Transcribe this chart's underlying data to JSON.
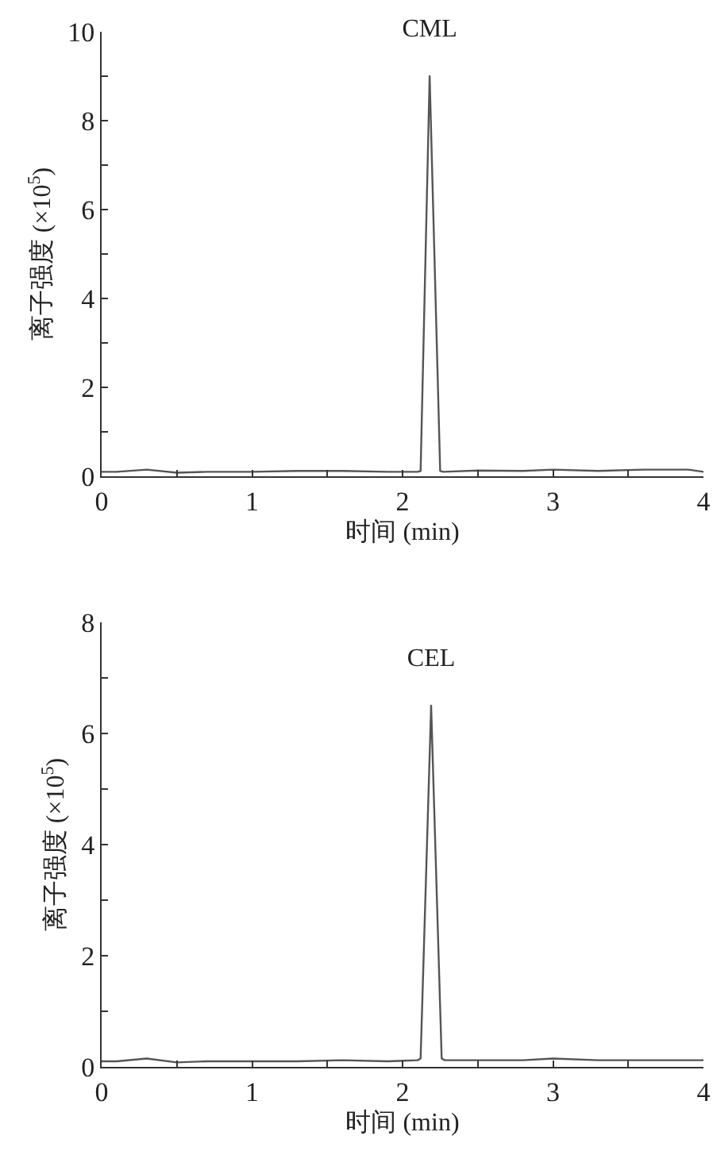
{
  "chart_data": [
    {
      "type": "line",
      "xlabel": "时间 (min)",
      "ylabel": "离子强度 (×10$^{5}$)",
      "xlim": [
        0,
        4
      ],
      "ylim": [
        0,
        10
      ],
      "xticks": [
        0,
        {
          "value": 0.5,
          "label": null
        },
        1,
        {
          "value": 1.5,
          "label": null
        },
        2,
        {
          "value": 2.5,
          "label": null
        },
        3,
        {
          "value": 3.5,
          "label": null
        },
        4
      ],
      "yticks": [
        0,
        {
          "value": 1,
          "label": null
        },
        2,
        {
          "value": 3,
          "label": null
        },
        4,
        {
          "value": 5,
          "label": null
        },
        6,
        {
          "value": 7,
          "label": null
        },
        8,
        {
          "value": 9,
          "label": null
        },
        10
      ],
      "marker": "none",
      "line_style": "solid",
      "annotations": [
        {
          "text": "CML",
          "x": 2.18,
          "y": 9
        }
      ],
      "series": [
        {
          "color": "#555555",
          "x": [
            0,
            0.1,
            0.3,
            0.5,
            0.7,
            1.0,
            1.3,
            1.6,
            1.9,
            2.1,
            2.12,
            2.18,
            2.25,
            2.27,
            2.5,
            2.8,
            3.0,
            3.3,
            3.6,
            3.9,
            4.0
          ],
          "values": [
            0.1,
            0.1,
            0.15,
            0.08,
            0.1,
            0.1,
            0.12,
            0.12,
            0.1,
            0.1,
            0.12,
            9.0,
            0.12,
            0.1,
            0.13,
            0.12,
            0.15,
            0.12,
            0.15,
            0.15,
            0.1
          ]
        }
      ]
    },
    {
      "type": "line",
      "xlabel": "时间 (min)",
      "ylabel": "离子强度 (×10$^{5}$)",
      "xlim": [
        0,
        4
      ],
      "ylim": [
        0,
        8
      ],
      "xticks": [
        0,
        {
          "value": 0.5,
          "label": null
        },
        1,
        {
          "value": 1.5,
          "label": null
        },
        2,
        {
          "value": 2.5,
          "label": null
        },
        3,
        {
          "value": 3.5,
          "label": null
        },
        4
      ],
      "yticks": [
        0,
        {
          "value": 1,
          "label": null
        },
        2,
        {
          "value": 3,
          "label": null
        },
        4,
        {
          "value": 5,
          "label": null
        },
        6,
        {
          "value": 7,
          "label": null
        },
        8
      ],
      "marker": "none",
      "line_style": "solid",
      "annotations": [
        {
          "text": "CEL",
          "x": 2.19,
          "y": 6.5
        }
      ],
      "series": [
        {
          "color": "#555555",
          "x": [
            0,
            0.1,
            0.3,
            0.5,
            0.7,
            1.0,
            1.3,
            1.6,
            1.9,
            2.1,
            2.12,
            2.19,
            2.26,
            2.28,
            2.5,
            2.8,
            3.0,
            3.3,
            3.6,
            3.9,
            4.0
          ],
          "values": [
            0.1,
            0.1,
            0.15,
            0.08,
            0.1,
            0.1,
            0.1,
            0.12,
            0.1,
            0.12,
            0.15,
            6.5,
            0.15,
            0.12,
            0.12,
            0.12,
            0.15,
            0.12,
            0.12,
            0.12,
            0.12
          ]
        }
      ]
    }
  ]
}
